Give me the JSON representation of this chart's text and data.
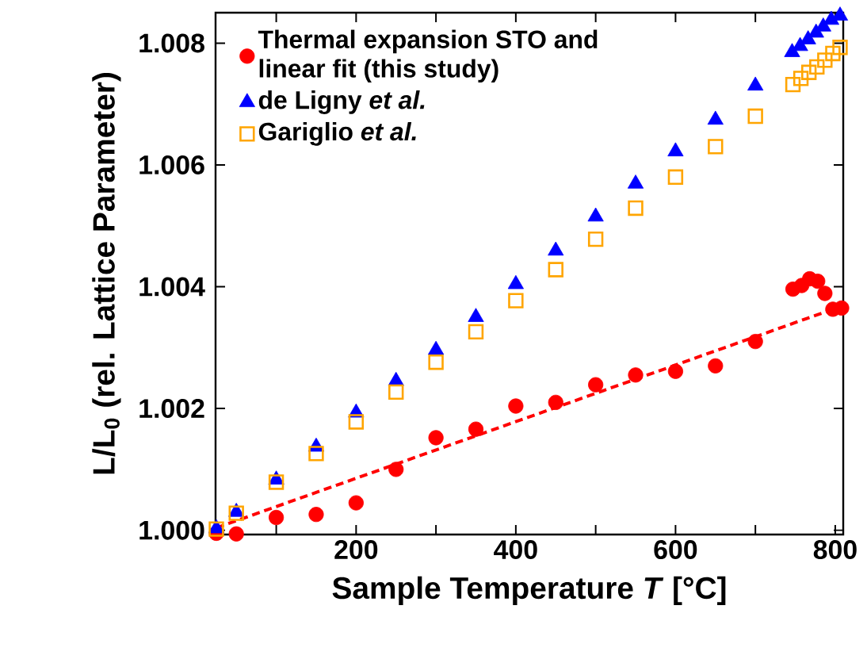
{
  "chart_data": {
    "type": "scatter",
    "xlabel": "Sample Temperature *T*  [°C]",
    "ylabel": "L/L$_{0}$ (rel. Lattice Parameter)",
    "xlim": [
      24,
      810
    ],
    "ylim": [
      0.99993,
      1.0085
    ],
    "xticks": [
      {
        "value": 100,
        "label": null
      },
      200,
      {
        "value": 300,
        "label": null
      },
      400,
      {
        "value": 500,
        "label": null
      },
      600,
      {
        "value": 700,
        "label": null
      },
      800
    ],
    "yticks": [
      {
        "value": 1.0,
        "label": "1.000"
      },
      1.002,
      1.004,
      1.006,
      1.008
    ],
    "legend": "top left",
    "series": [
      {
        "name": "Thermal expansion STO and linear fit (this study)",
        "marker": "circle",
        "color": "#ff0000",
        "x": [
          25,
          50,
          100,
          150,
          200,
          250,
          300,
          350,
          400,
          450,
          500,
          550,
          600,
          650,
          700,
          747,
          758,
          768,
          778,
          787,
          797,
          808
        ],
        "values": [
          0.99995,
          0.99994,
          1.00021,
          1.00026,
          1.00045,
          1.001,
          1.00152,
          1.00166,
          1.00204,
          1.0021,
          1.00239,
          1.00255,
          1.00261,
          1.0027,
          1.0031,
          1.00396,
          1.00402,
          1.00413,
          1.00409,
          1.00389,
          1.00363,
          1.00365
        ]
      },
      {
        "type": "line",
        "line_style": "dashed",
        "marker": "none",
        "color": "#ff0000",
        "x": [
          25,
          810
        ],
        "values": [
          1.00004,
          1.00369
        ]
      },
      {
        "name": "de Ligny  *et al.*",
        "marker": "triangle",
        "color": "#0000ff",
        "x": [
          25,
          50,
          100,
          150,
          200,
          250,
          300,
          350,
          400,
          450,
          500,
          550,
          600,
          650,
          700,
          746,
          756,
          766,
          776,
          785,
          795,
          806
        ],
        "values": [
          1.00003,
          1.0003,
          1.00083,
          1.00137,
          1.00193,
          1.00245,
          1.00296,
          1.0035,
          1.00404,
          1.00459,
          1.00515,
          1.00569,
          1.00622,
          1.00674,
          1.0073,
          1.00785,
          1.00795,
          1.00806,
          1.00817,
          1.00827,
          1.00838,
          1.00845
        ]
      },
      {
        "name": "Gariglio *et al.*",
        "marker": "square",
        "color": "#ffa500",
        "x": [
          25,
          50,
          100,
          150,
          200,
          250,
          300,
          350,
          400,
          450,
          500,
          550,
          600,
          650,
          700,
          747,
          757,
          767,
          777,
          787,
          797,
          806
        ],
        "values": [
          1.00002,
          1.00028,
          1.00079,
          1.00126,
          1.00178,
          1.00227,
          1.00276,
          1.00326,
          1.00377,
          1.00428,
          1.00478,
          1.00529,
          1.0058,
          1.0063,
          1.0068,
          1.00732,
          1.00742,
          1.00752,
          1.00761,
          1.00772,
          1.00783,
          1.00793
        ]
      }
    ]
  }
}
